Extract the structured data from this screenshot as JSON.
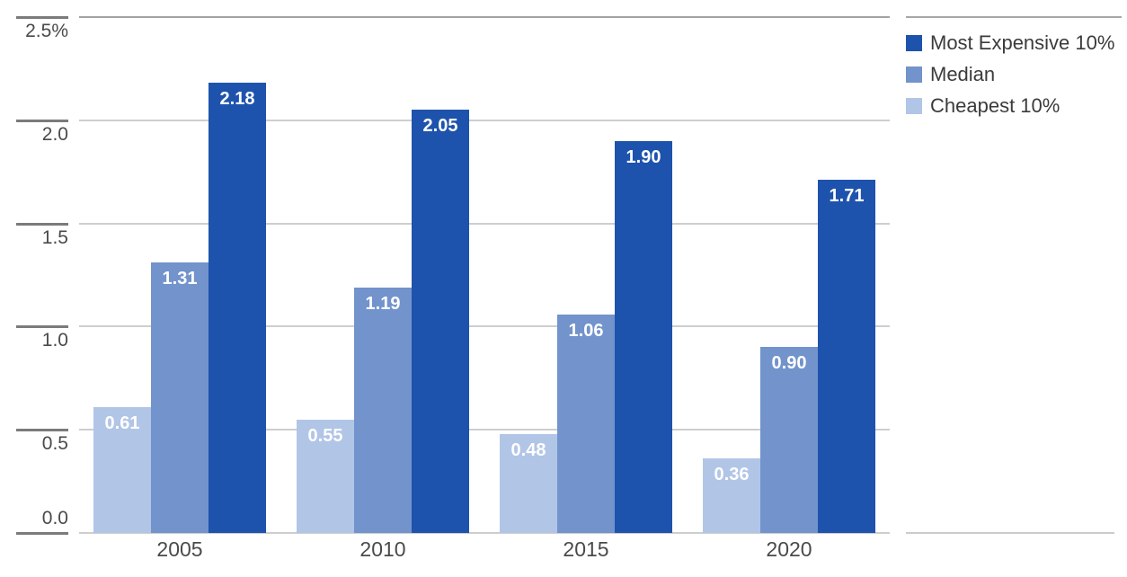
{
  "chart_data": {
    "type": "bar",
    "title": "",
    "categories": [
      "2005",
      "2010",
      "2015",
      "2020"
    ],
    "series": [
      {
        "name": "Most Expensive 10%",
        "color": "#1e53ad",
        "values": [
          2.18,
          2.05,
          1.9,
          1.71
        ]
      },
      {
        "name": "Median",
        "color": "#7293cb",
        "values": [
          1.31,
          1.19,
          1.06,
          0.9
        ]
      },
      {
        "name": "Cheapest 10%",
        "color": "#b1c5e7",
        "values": [
          0.61,
          0.55,
          0.48,
          0.36
        ]
      }
    ],
    "ylim": [
      0,
      2.5
    ],
    "ytick_values": [
      0,
      0.5,
      1.0,
      1.5,
      2.0,
      2.5
    ],
    "ytick_labels": [
      "0.0",
      "0.5",
      "1.0",
      "1.5",
      "2.0",
      "2.5%"
    ],
    "value_label_format": "2-decimals",
    "grid": "horizontal",
    "legend_position": "top-right"
  },
  "colors": {
    "background": "#ffffff",
    "gridline": "#cecece",
    "gridline_top": "#a2a2a2",
    "tick": "#7b7b7b",
    "axis_text": "#4a4a4a",
    "legend_text": "#3b3b3b",
    "bar_value_text": "#ffffff"
  }
}
